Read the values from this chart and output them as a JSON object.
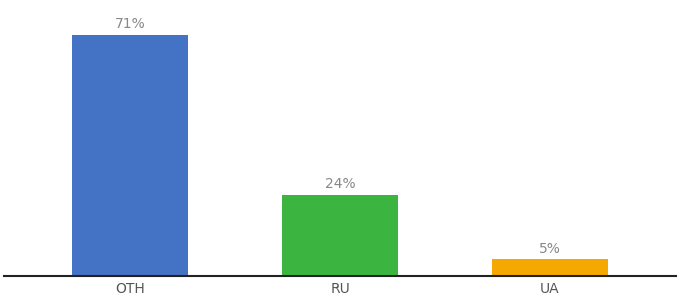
{
  "categories": [
    "OTH",
    "RU",
    "UA"
  ],
  "values": [
    71,
    24,
    5
  ],
  "bar_colors": [
    "#4472c4",
    "#3cb540",
    "#f5a800"
  ],
  "labels": [
    "71%",
    "24%",
    "5%"
  ],
  "ylim": [
    0,
    80
  ],
  "background_color": "#ffffff",
  "label_fontsize": 10,
  "tick_fontsize": 10,
  "bar_width": 0.55
}
